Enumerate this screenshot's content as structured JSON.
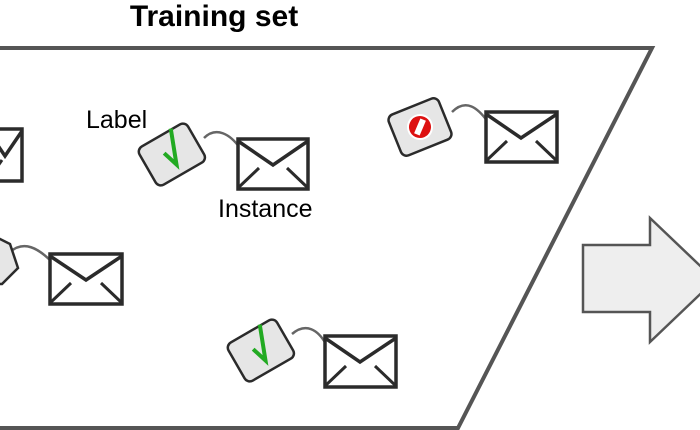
{
  "diagram": {
    "title": "Training set",
    "annotations": {
      "label": "Label",
      "instance": "Instance"
    },
    "items": [
      {
        "tag": "unknown",
        "tag_state": "partially-visible"
      },
      {
        "tag": "check-mark"
      },
      {
        "tag": "no-entry"
      },
      {
        "tag": "unknown",
        "tag_state": "partially-visible"
      },
      {
        "tag": "check-mark"
      }
    ],
    "colors": {
      "outline": "#2b2b2b",
      "tag_fill": "#e6e6e6",
      "check": "#22aa22",
      "no_entry": "#dd1111",
      "arrow_fill": "#eeeeee",
      "arrow_stroke": "#555555",
      "string": "#666666"
    }
  }
}
